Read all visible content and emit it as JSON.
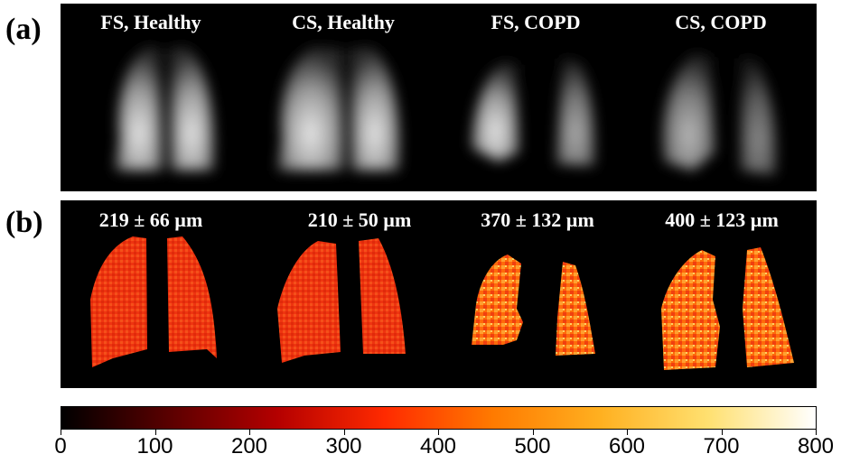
{
  "panel_a": {
    "letter": "(a)",
    "labels": [
      "FS, Healthy",
      "CS, Healthy",
      "FS, COPD",
      "CS, COPD"
    ]
  },
  "panel_b": {
    "letter": "(b)",
    "labels": [
      "219 ± 66 µm",
      "210 ± 50 µm",
      "370 ± 132 µm",
      "400 ± 123 µm"
    ]
  },
  "colorbar": {
    "ticks": [
      "0",
      "100",
      "200",
      "300",
      "400",
      "500",
      "600",
      "700",
      "800"
    ],
    "range": [
      0,
      800
    ],
    "colormap": "hot",
    "colors": [
      "#000000",
      "#5a0000",
      "#b40000",
      "#ff2a00",
      "#ff7a00",
      "#ffb020",
      "#ffe070",
      "#ffffff"
    ]
  }
}
